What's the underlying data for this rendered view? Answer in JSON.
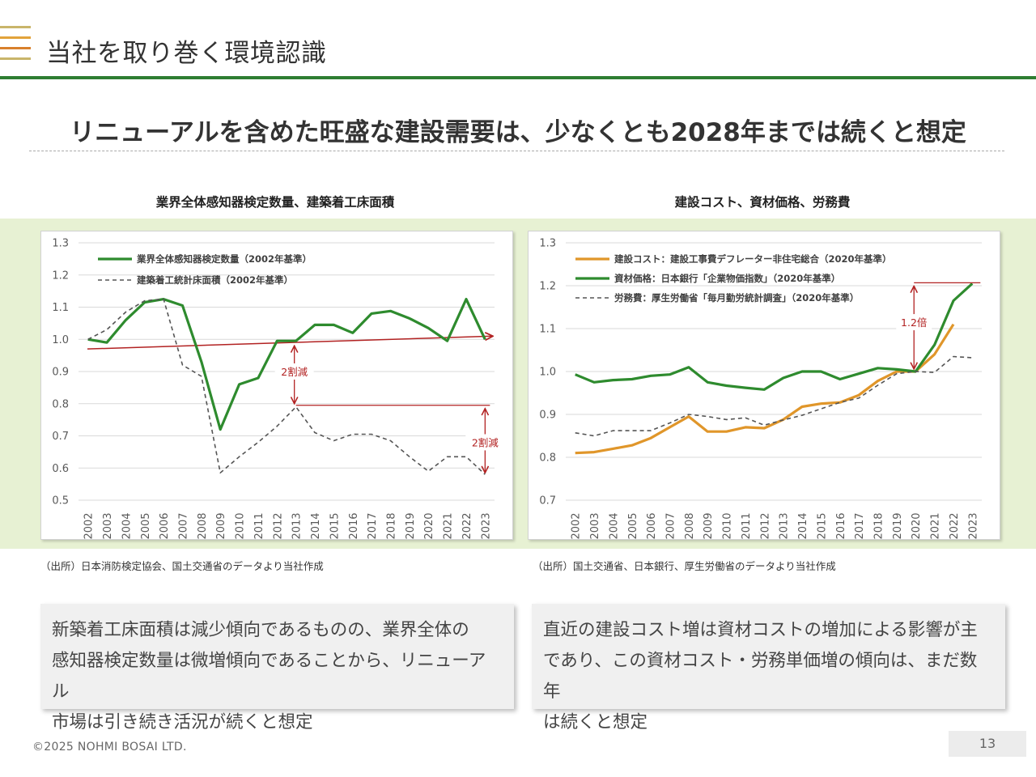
{
  "header": {
    "title": "当社を取り巻く環境認識",
    "logo_colors": [
      "#c9b56a",
      "#e2a33b",
      "#d8802c",
      "#c9b56a"
    ],
    "rule_color": "#2e7d32"
  },
  "headline": "リニューアルを含めた旺盛な建設需要は、少なくとも2028年までは続くと想定",
  "left_panel": {
    "title": "業界全体感知器検定数量、建築着工床面積",
    "source": "（出所）日本消防検定協会、国土交通省のデータより当社作成",
    "summary": "新築着工床面積は減少傾向であるものの、業界全体の\n感知器検定数量は微増傾向であることから、リニューアル\n市場は引き続き活況が続くと想定"
  },
  "right_panel": {
    "title": "建設コスト、資材価格、労務費",
    "source": "（出所）国土交通省、日本銀行、厚生労働省のデータより当社作成",
    "summary": "直近の建設コスト増は資材コストの増加による影響が主\nであり、この資材コスト・労務単価増の傾向は、まだ数年\nは続くと想定"
  },
  "footer": {
    "copyright": "©2025 NOHMI BOSAI LTD.",
    "page_number": "13"
  },
  "chart_data": [
    {
      "type": "line",
      "title": "業界全体感知器検定数量、建築着工床面積",
      "categories": [
        "2002",
        "2003",
        "2004",
        "2005",
        "2006",
        "2007",
        "2008",
        "2009",
        "2010",
        "2011",
        "2012",
        "2013",
        "2014",
        "2015",
        "2016",
        "2017",
        "2018",
        "2019",
        "2020",
        "2021",
        "2022",
        "2023"
      ],
      "ylim": [
        0.5,
        1.3
      ],
      "yticks": [
        "1.3",
        "1.2",
        "1.1",
        "1.0",
        "0.9",
        "0.8",
        "0.7",
        "0.6",
        "0.5"
      ],
      "grid": true,
      "legend": "top-left",
      "series": [
        {
          "name": "業界全体感知器検定数量（2002年基準）",
          "color": "#2e8b2e",
          "style": "solid",
          "values": [
            1.0,
            0.99,
            1.06,
            1.115,
            1.125,
            1.105,
            0.93,
            0.72,
            0.86,
            0.88,
            0.995,
            0.995,
            1.045,
            1.045,
            1.02,
            1.08,
            1.088,
            1.065,
            1.035,
            0.995,
            1.125,
            1.0
          ]
        },
        {
          "name": "建築着工統計床面積（2002年基準）",
          "color": "#555555",
          "style": "dashed",
          "values": [
            1.0,
            1.03,
            1.085,
            1.12,
            1.125,
            0.92,
            0.885,
            0.585,
            0.635,
            0.68,
            0.73,
            0.79,
            0.71,
            0.685,
            0.705,
            0.705,
            0.685,
            0.635,
            0.59,
            0.635,
            0.635,
            0.58
          ]
        }
      ],
      "annotations": {
        "trend_line": {
          "from": 0.97,
          "to": 1.01,
          "color": "#b22222"
        },
        "reference_level": 0.795,
        "arrow1": {
          "label": "2割減",
          "x": "2013",
          "from": 0.995,
          "to": 0.795
        },
        "arrow2": {
          "label": "2割減",
          "x": "2023",
          "from": 0.795,
          "to": 0.58
        }
      }
    },
    {
      "type": "line",
      "title": "建設コスト、資材価格、労務費",
      "categories": [
        "2002",
        "2003",
        "2004",
        "2005",
        "2006",
        "2007",
        "2008",
        "2009",
        "2010",
        "2011",
        "2012",
        "2013",
        "2014",
        "2015",
        "2016",
        "2017",
        "2018",
        "2019",
        "2020",
        "2021",
        "2022",
        "2023"
      ],
      "ylim": [
        0.7,
        1.3
      ],
      "yticks": [
        "1.3",
        "1.2",
        "1.1",
        "1.0",
        "0.9",
        "0.8",
        "0.7"
      ],
      "grid": true,
      "legend": "top-left",
      "series": [
        {
          "name": "建設コスト：建設工事費デフレーター非住宅総合（2020年基準）",
          "color": "#e0962a",
          "style": "solid",
          "values": [
            0.81,
            0.812,
            0.82,
            0.828,
            0.845,
            0.87,
            0.895,
            0.86,
            0.86,
            0.87,
            0.868,
            0.888,
            0.918,
            0.925,
            0.928,
            0.945,
            0.978,
            1.0,
            1.0,
            1.04,
            1.11,
            null
          ]
        },
        {
          "name": "資材価格：日本銀行「企業物価指数」（2020年基準）",
          "color": "#2e8b2e",
          "style": "solid",
          "values": [
            0.993,
            0.975,
            0.98,
            0.982,
            0.99,
            0.993,
            1.01,
            0.975,
            0.967,
            0.962,
            0.958,
            0.985,
            1.0,
            1.0,
            0.982,
            0.995,
            1.008,
            1.005,
            1.0,
            1.062,
            1.165,
            1.205
          ]
        },
        {
          "name": "労務費：厚生労働省「毎月勤労統計調査」（2020年基準）",
          "color": "#555555",
          "style": "dashed",
          "values": [
            0.857,
            0.85,
            0.862,
            0.862,
            0.862,
            0.88,
            0.9,
            0.895,
            0.888,
            0.892,
            0.875,
            0.887,
            0.898,
            0.913,
            0.928,
            0.938,
            0.968,
            0.995,
            1.0,
            0.998,
            1.035,
            1.032
          ]
        }
      ],
      "annotations": {
        "arrow": {
          "label": "1.2倍",
          "x": "2020",
          "from": 1.0,
          "to": 1.205
        }
      }
    }
  ]
}
